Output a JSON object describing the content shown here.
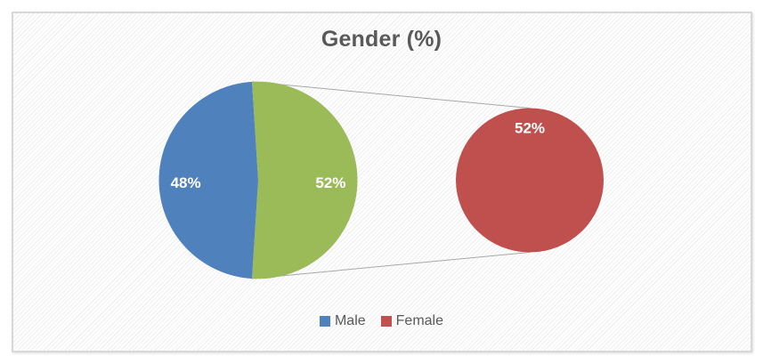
{
  "chart_data": {
    "type": "pie",
    "variant": "pie-of-pie",
    "title": "Gender (%)",
    "categories": [
      "Male",
      "Female"
    ],
    "values": [
      48,
      52
    ],
    "data_labels": [
      "48%",
      "52%"
    ],
    "secondary_pie": {
      "category": "Female",
      "value": 52,
      "data_label": "52%"
    },
    "legend": {
      "position": "bottom",
      "entries": [
        {
          "label": "Male",
          "color": "#4F81BD"
        },
        {
          "label": "Female",
          "color": "#C0504D"
        }
      ]
    },
    "layout_hints": {
      "grid": "off",
      "axes": "none",
      "connector_lines": "main female slice to secondary pie top and bottom"
    },
    "colors": {
      "male_slice": "#4F81BD",
      "female_main_slice": "#9BBB59",
      "female_secondary_pie": "#C0504D",
      "connector_line": "#a8a8a8",
      "data_label_text": "#ffffff",
      "title_text": "#595959",
      "legend_text": "#595959",
      "frame_border": "#d8d8d8"
    }
  }
}
